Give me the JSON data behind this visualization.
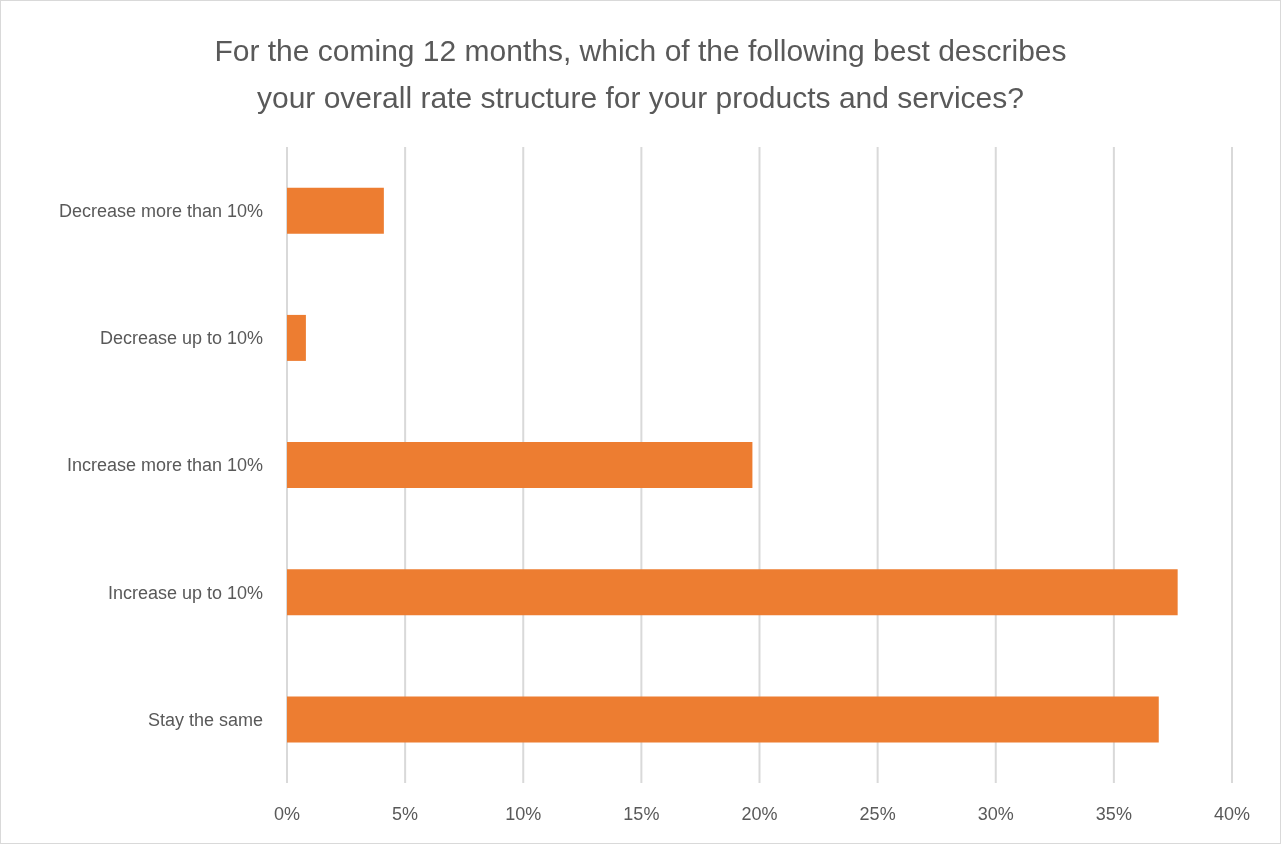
{
  "chart_data": {
    "type": "bar",
    "orientation": "horizontal",
    "title": "For the coming 12 months, which of the following best describes your overall rate structure for your products and services?",
    "categories": [
      "Decrease more than 10%",
      "Decrease up to 10%",
      "Increase more than 10%",
      "Increase up to 10%",
      "Stay the same"
    ],
    "values": [
      4.1,
      0.8,
      19.7,
      37.7,
      36.9
    ],
    "color": "#ed7d31",
    "xlim": [
      0,
      40
    ],
    "xticks": [
      {
        "value": 0,
        "label": "0%"
      },
      {
        "value": 5,
        "label": "5%"
      },
      {
        "value": 10,
        "label": "10%"
      },
      {
        "value": 15,
        "label": "15%"
      },
      {
        "value": 20,
        "label": "20%"
      },
      {
        "value": 25,
        "label": "25%"
      },
      {
        "value": 30,
        "label": "30%"
      },
      {
        "value": 35,
        "label": "35%"
      },
      {
        "value": 40,
        "label": "40%"
      }
    ],
    "grid": "x"
  }
}
